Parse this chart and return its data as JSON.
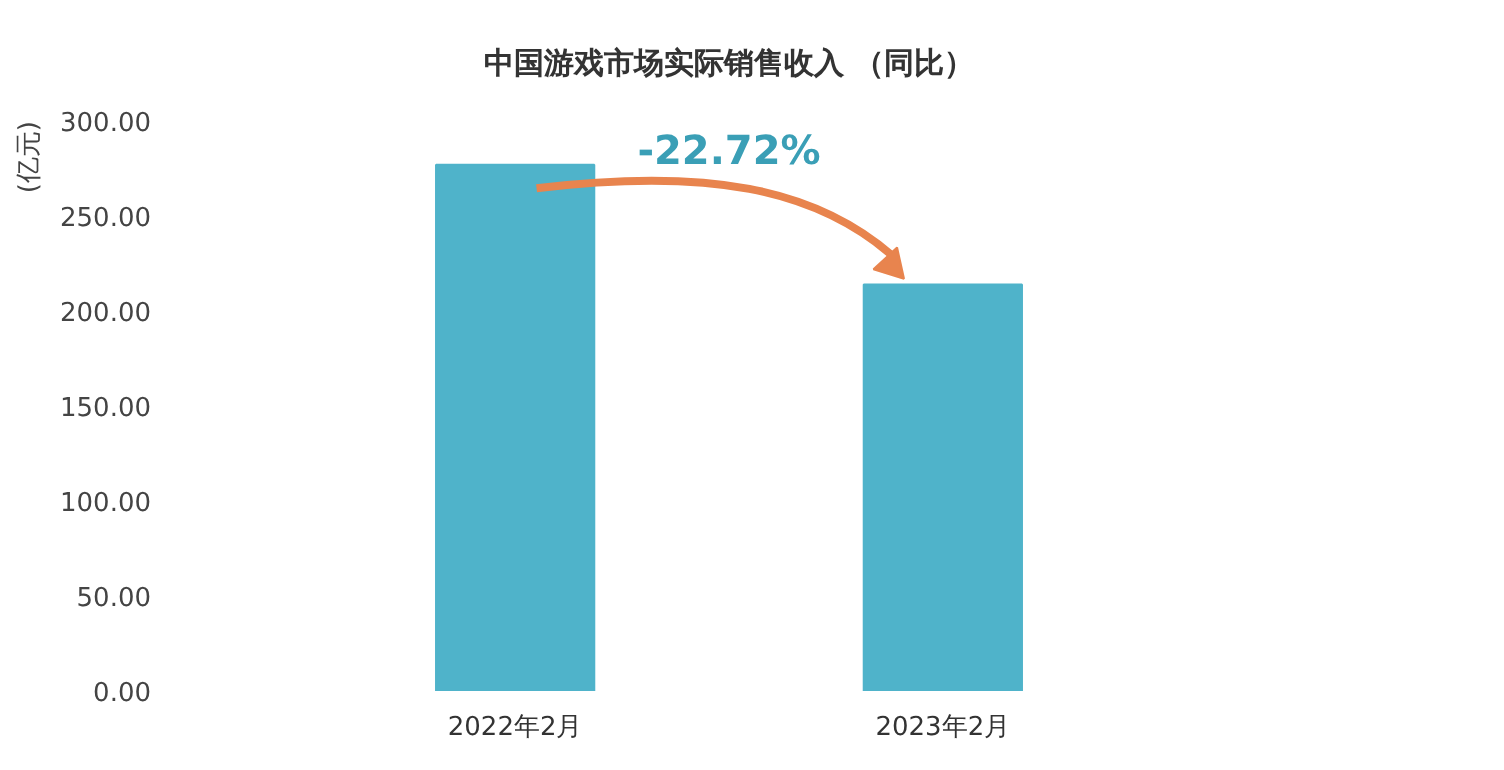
{
  "chart_data": {
    "type": "bar",
    "title": "中国游戏市场实际销售收入 （同比）",
    "ylabel": "(亿元)",
    "categories": [
      "2022年2月",
      "2023年2月"
    ],
    "values": [
      277,
      214
    ],
    "color": "#4fb3ca",
    "ylim": [
      0,
      300
    ],
    "yticks": [
      {
        "value": 0,
        "label": "0.00"
      },
      {
        "value": 50,
        "label": "50.00"
      },
      {
        "value": 100,
        "label": "100.00"
      },
      {
        "value": 150,
        "label": "150.00"
      },
      {
        "value": 200,
        "label": "200.00"
      },
      {
        "value": 250,
        "label": "250.00"
      },
      {
        "value": 300,
        "label": "300.00"
      }
    ],
    "annotations": [
      "-22.72%"
    ],
    "grid": false
  }
}
